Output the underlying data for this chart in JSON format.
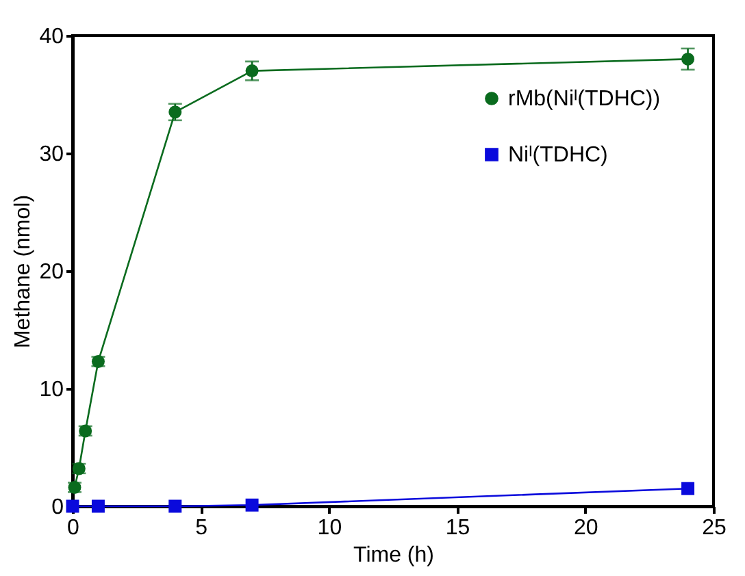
{
  "chart_data": {
    "type": "line",
    "xlabel": "Time (h)",
    "ylabel": "Methane (nmol)",
    "xlim": [
      0,
      25
    ],
    "xticks": [
      0,
      5,
      10,
      15,
      20,
      25
    ],
    "ylim": [
      0,
      40
    ],
    "yticks": [
      0,
      10,
      20,
      30,
      40
    ],
    "grid": false,
    "legend": "top right",
    "line_style": "solid",
    "series": [
      {
        "name": "rMb(Niᴵ(TDHC))",
        "color": "#0a6b1e",
        "marker": "circle",
        "x": [
          0.08,
          0.25,
          0.5,
          1,
          4,
          7,
          24
        ],
        "values": [
          1.6,
          3.2,
          6.4,
          12.3,
          33.5,
          37.0,
          38.0
        ],
        "errors": [
          0.4,
          0.4,
          0.4,
          0.4,
          0.7,
          0.8,
          0.9
        ]
      },
      {
        "name": "Niᴵ(TDHC)",
        "color": "#0a0adc",
        "marker": "square",
        "x": [
          0,
          1,
          4,
          7,
          24
        ],
        "values": [
          0.0,
          0.0,
          0.0,
          0.1,
          1.5
        ],
        "errors": [
          null,
          null,
          null,
          null,
          null
        ]
      }
    ]
  }
}
